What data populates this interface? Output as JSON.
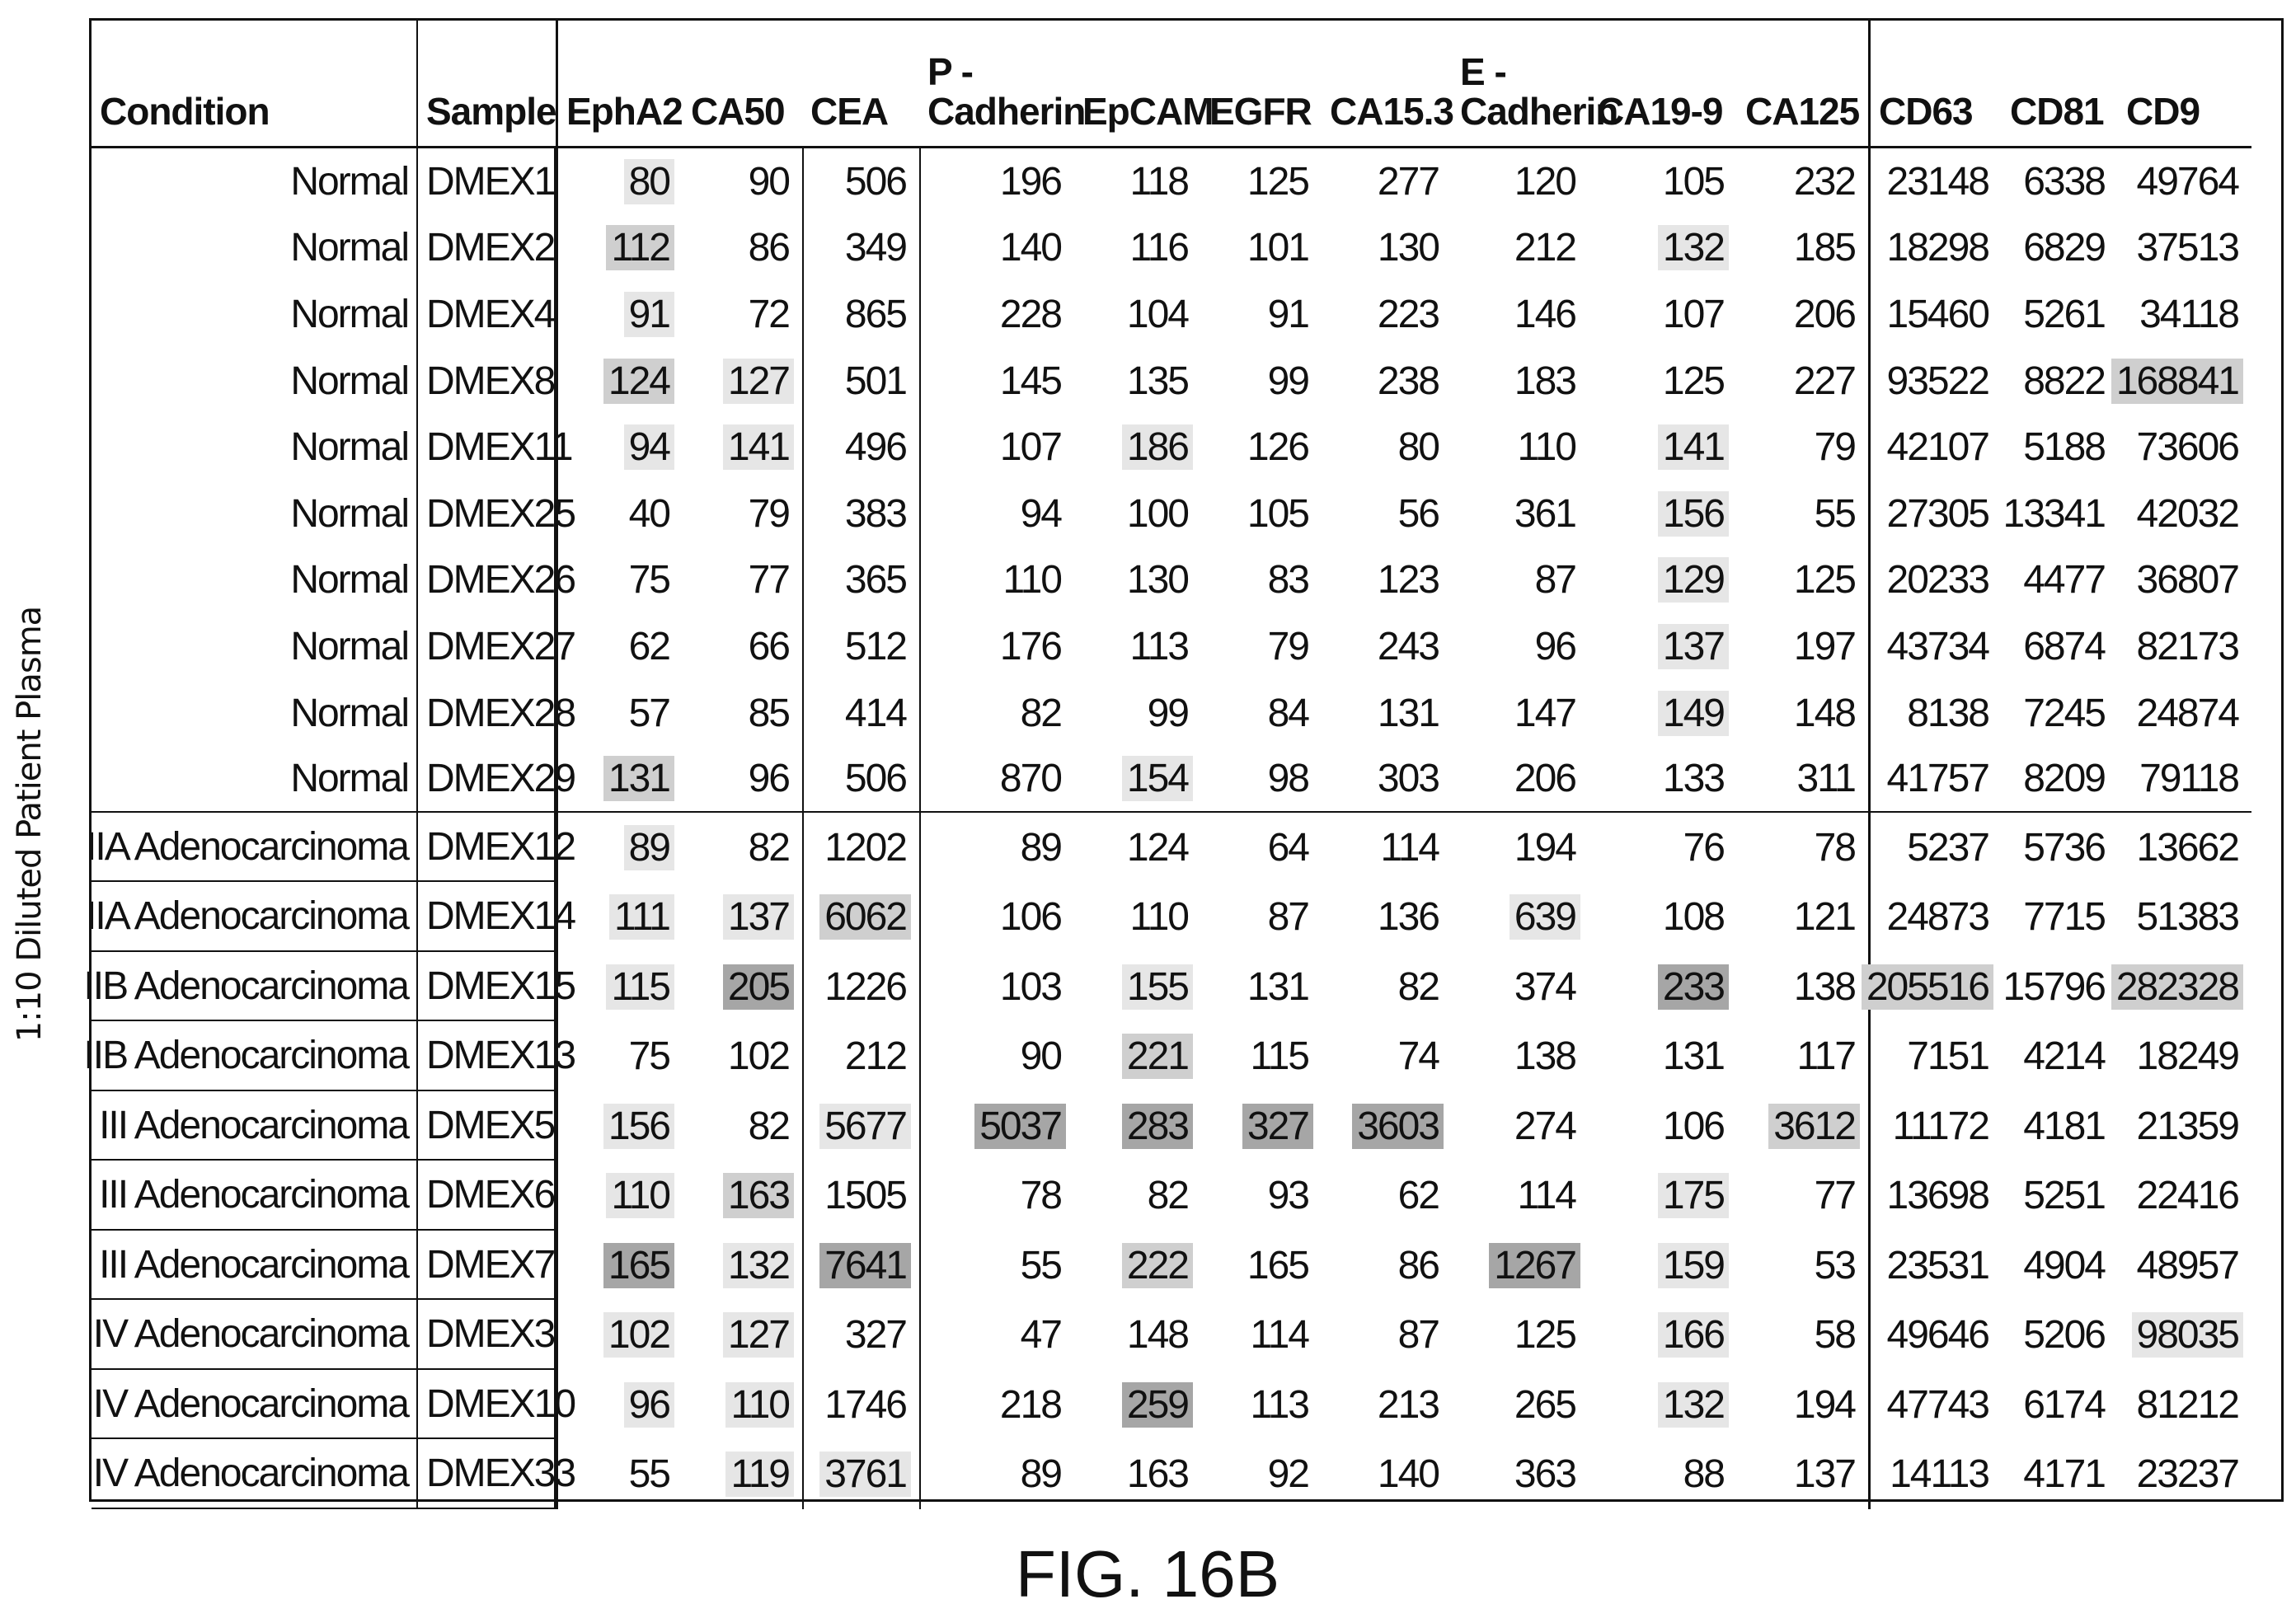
{
  "side_label": "1:10 Diluted Patient Plasma",
  "figure_label": "FIG. 16B",
  "headers": [
    "Condition",
    "Sample",
    "EphA2",
    "CA50",
    "CEA",
    "P -\nCadherin",
    "EpCAM",
    "EGFR",
    "CA15.3",
    "E -\nCadherin",
    "CA19-9",
    "CA125",
    "CD63",
    "CD81",
    "CD9"
  ],
  "rows": [
    {
      "condition": "Normal",
      "sample": "DMEX1",
      "values": [
        "80",
        "90",
        "506",
        "196",
        "118",
        "125",
        "277",
        "120",
        "105",
        "232",
        "23148",
        "6338",
        "49764"
      ],
      "shade": [
        1,
        0,
        0,
        0,
        0,
        0,
        0,
        0,
        0,
        0,
        0,
        0,
        0
      ]
    },
    {
      "condition": "Normal",
      "sample": "DMEX2",
      "values": [
        "112",
        "86",
        "349",
        "140",
        "116",
        "101",
        "130",
        "212",
        "132",
        "185",
        "18298",
        "6829",
        "37513"
      ],
      "shade": [
        2,
        0,
        0,
        0,
        0,
        0,
        0,
        0,
        1,
        0,
        0,
        0,
        0
      ]
    },
    {
      "condition": "Normal",
      "sample": "DMEX4",
      "values": [
        "91",
        "72",
        "865",
        "228",
        "104",
        "91",
        "223",
        "146",
        "107",
        "206",
        "15460",
        "5261",
        "34118"
      ],
      "shade": [
        1,
        0,
        0,
        0,
        0,
        0,
        0,
        0,
        0,
        0,
        0,
        0,
        0
      ]
    },
    {
      "condition": "Normal",
      "sample": "DMEX8",
      "values": [
        "124",
        "127",
        "501",
        "145",
        "135",
        "99",
        "238",
        "183",
        "125",
        "227",
        "93522",
        "8822",
        "168841"
      ],
      "shade": [
        2,
        1,
        0,
        0,
        0,
        0,
        0,
        0,
        0,
        0,
        0,
        0,
        2
      ]
    },
    {
      "condition": "Normal",
      "sample": "DMEX11",
      "values": [
        "94",
        "141",
        "496",
        "107",
        "186",
        "126",
        "80",
        "110",
        "141",
        "79",
        "42107",
        "5188",
        "73606"
      ],
      "shade": [
        1,
        1,
        0,
        0,
        1,
        0,
        0,
        0,
        1,
        0,
        0,
        0,
        0
      ]
    },
    {
      "condition": "Normal",
      "sample": "DMEX25",
      "values": [
        "40",
        "79",
        "383",
        "94",
        "100",
        "105",
        "56",
        "361",
        "156",
        "55",
        "27305",
        "13341",
        "42032"
      ],
      "shade": [
        0,
        0,
        0,
        0,
        0,
        0,
        0,
        0,
        1,
        0,
        0,
        0,
        0
      ]
    },
    {
      "condition": "Normal",
      "sample": "DMEX26",
      "values": [
        "75",
        "77",
        "365",
        "110",
        "130",
        "83",
        "123",
        "87",
        "129",
        "125",
        "20233",
        "4477",
        "36807"
      ],
      "shade": [
        0,
        0,
        0,
        0,
        0,
        0,
        0,
        0,
        1,
        0,
        0,
        0,
        0
      ]
    },
    {
      "condition": "Normal",
      "sample": "DMEX27",
      "values": [
        "62",
        "66",
        "512",
        "176",
        "113",
        "79",
        "243",
        "96",
        "137",
        "197",
        "43734",
        "6874",
        "82173"
      ],
      "shade": [
        0,
        0,
        0,
        0,
        0,
        0,
        0,
        0,
        1,
        0,
        0,
        0,
        0
      ]
    },
    {
      "condition": "Normal",
      "sample": "DMEX28",
      "values": [
        "57",
        "85",
        "414",
        "82",
        "99",
        "84",
        "131",
        "147",
        "149",
        "148",
        "8138",
        "7245",
        "24874"
      ],
      "shade": [
        0,
        0,
        0,
        0,
        0,
        0,
        0,
        0,
        1,
        0,
        0,
        0,
        0
      ]
    },
    {
      "condition": "Normal",
      "sample": "DMEX29",
      "values": [
        "131",
        "96",
        "506",
        "870",
        "154",
        "98",
        "303",
        "206",
        "133",
        "311",
        "41757",
        "8209",
        "79118"
      ],
      "shade": [
        2,
        0,
        0,
        0,
        1,
        0,
        0,
        0,
        0,
        0,
        0,
        0,
        0
      ]
    },
    {
      "condition": "IIA Adenocarcinoma",
      "sample": "DMEX12",
      "values": [
        "89",
        "82",
        "1202",
        "89",
        "124",
        "64",
        "114",
        "194",
        "76",
        "78",
        "5237",
        "5736",
        "13662"
      ],
      "shade": [
        1,
        0,
        0,
        0,
        0,
        0,
        0,
        0,
        0,
        0,
        0,
        0,
        0
      ]
    },
    {
      "condition": "IIA Adenocarcinoma",
      "sample": "DMEX14",
      "values": [
        "111",
        "137",
        "6062",
        "106",
        "110",
        "87",
        "136",
        "639",
        "108",
        "121",
        "24873",
        "7715",
        "51383"
      ],
      "shade": [
        1,
        1,
        2,
        0,
        0,
        0,
        0,
        1,
        0,
        0,
        0,
        0,
        0
      ]
    },
    {
      "condition": "IIB Adenocarcinoma",
      "sample": "DMEX15",
      "values": [
        "115",
        "205",
        "1226",
        "103",
        "155",
        "131",
        "82",
        "374",
        "233",
        "138",
        "205516",
        "15796",
        "282328"
      ],
      "shade": [
        1,
        3,
        0,
        0,
        1,
        0,
        0,
        0,
        3,
        0,
        2,
        0,
        2
      ]
    },
    {
      "condition": "IIB Adenocarcinoma",
      "sample": "DMEX13",
      "values": [
        "75",
        "102",
        "212",
        "90",
        "221",
        "115",
        "74",
        "138",
        "131",
        "117",
        "7151",
        "4214",
        "18249"
      ],
      "shade": [
        0,
        0,
        0,
        0,
        2,
        0,
        0,
        0,
        0,
        0,
        0,
        0,
        0
      ]
    },
    {
      "condition": "III Adenocarcinoma",
      "sample": "DMEX5",
      "values": [
        "156",
        "82",
        "5677",
        "5037",
        "283",
        "327",
        "3603",
        "274",
        "106",
        "3612",
        "11172",
        "4181",
        "21359"
      ],
      "shade": [
        1,
        0,
        1,
        3,
        3,
        3,
        3,
        0,
        0,
        2,
        0,
        0,
        0
      ]
    },
    {
      "condition": "III Adenocarcinoma",
      "sample": "DMEX6",
      "values": [
        "110",
        "163",
        "1505",
        "78",
        "82",
        "93",
        "62",
        "114",
        "175",
        "77",
        "13698",
        "5251",
        "22416"
      ],
      "shade": [
        1,
        2,
        0,
        0,
        0,
        0,
        0,
        0,
        1,
        0,
        0,
        0,
        0
      ]
    },
    {
      "condition": "III Adenocarcinoma",
      "sample": "DMEX7",
      "values": [
        "165",
        "132",
        "7641",
        "55",
        "222",
        "165",
        "86",
        "1267",
        "159",
        "53",
        "23531",
        "4904",
        "48957"
      ],
      "shade": [
        3,
        1,
        3,
        0,
        2,
        0,
        0,
        3,
        1,
        0,
        0,
        0,
        0
      ]
    },
    {
      "condition": "IV Adenocarcinoma",
      "sample": "DMEX3",
      "values": [
        "102",
        "127",
        "327",
        "47",
        "148",
        "114",
        "87",
        "125",
        "166",
        "58",
        "49646",
        "5206",
        "98035"
      ],
      "shade": [
        1,
        1,
        0,
        0,
        0,
        0,
        0,
        0,
        1,
        0,
        0,
        0,
        1
      ]
    },
    {
      "condition": "IV Adenocarcinoma",
      "sample": "DMEX10",
      "values": [
        "96",
        "110",
        "1746",
        "218",
        "259",
        "113",
        "213",
        "265",
        "132",
        "194",
        "47743",
        "6174",
        "81212"
      ],
      "shade": [
        1,
        1,
        0,
        0,
        3,
        0,
        0,
        0,
        1,
        0,
        0,
        0,
        0
      ]
    },
    {
      "condition": "IV Adenocarcinoma",
      "sample": "DMEX33",
      "values": [
        "55",
        "119",
        "3761",
        "89",
        "163",
        "92",
        "140",
        "363",
        "88",
        "137",
        "14113",
        "4171",
        "23237"
      ],
      "shade": [
        0,
        1,
        1,
        0,
        0,
        0,
        0,
        0,
        0,
        0,
        0,
        0,
        0
      ]
    }
  ]
}
